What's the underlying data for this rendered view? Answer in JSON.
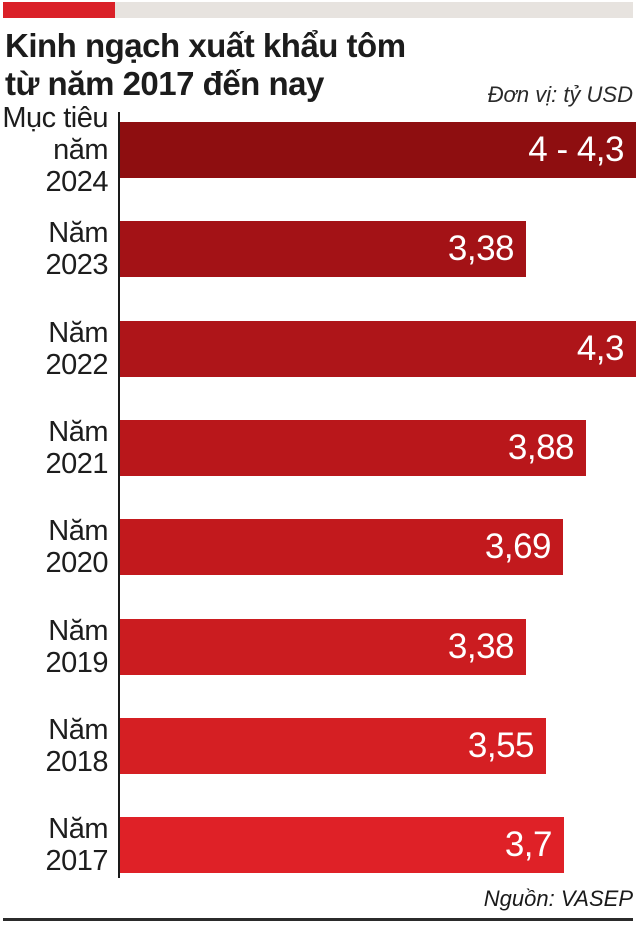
{
  "header": {
    "title_line1": "Kinh ngạch xuất khẩu tôm",
    "title_line2": "từ năm 2017 đến nay",
    "unit_label": "Đơn vị: tỷ USD"
  },
  "footer": {
    "source_label": "Nguồn: VASEP"
  },
  "colors": {
    "accent_red": "#da2128",
    "topbar_gray": "#e7e3df",
    "axis_black": "#1a1a1a",
    "value_text": "#ffffff",
    "label_text": "#1d1d1d"
  },
  "chart_data": {
    "type": "bar",
    "orientation": "horizontal",
    "title": "Kinh ngạch xuất khẩu tôm từ năm 2017 đến nay",
    "unit": "tỷ USD",
    "source": "VASEP",
    "categories": [
      "Mục tiêu\nnăm 2024",
      "Năm 2023",
      "Năm 2022",
      "Năm 2021",
      "Năm 2020",
      "Năm 2019",
      "Năm 2018",
      "Năm 2017"
    ],
    "values": [
      4.3,
      3.38,
      4.3,
      3.88,
      3.69,
      3.38,
      3.55,
      3.7
    ],
    "value_labels": [
      "4 - 4,3",
      "3,38",
      "4,3",
      "3,88",
      "3,69",
      "3,38",
      "3,55",
      "3,7"
    ],
    "note": "First bar is a target range 4 to 4,3 for 2024; bar drawn at 4,3",
    "bar_colors": [
      "#8e0e10",
      "#a31216",
      "#ae1519",
      "#b9171b",
      "#c2191d",
      "#cb1c20",
      "#d51f23",
      "#df2127"
    ],
    "xlim": [
      0,
      4.3
    ],
    "grid": false,
    "legend": false
  }
}
